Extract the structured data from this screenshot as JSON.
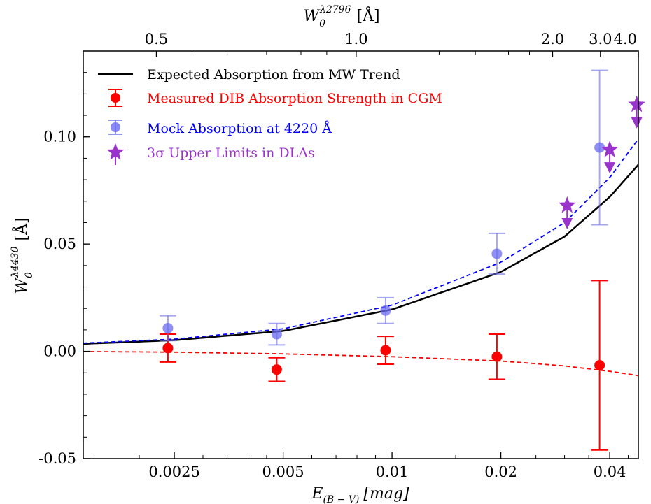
{
  "chart_data": {
    "type": "scatter",
    "x_scale": "log",
    "xlim": [
      0.0014,
      0.048
    ],
    "ylim": [
      -0.05,
      0.14
    ],
    "grid": false,
    "legend_position": "top-left",
    "xlabel": {
      "main": "E",
      "sub": "(B − V)",
      "unit": "[mag]"
    },
    "ylabel": {
      "main": "W",
      "sub": "0",
      "sup": "λ4430",
      "unit": "[Å]"
    },
    "top_xlabel": {
      "main": "W",
      "sub": "0",
      "sup": "λ2796",
      "unit": "[Å]"
    },
    "x_ticks": [
      {
        "value": 0.0025,
        "label": "0.0025"
      },
      {
        "value": 0.005,
        "label": "0.005"
      },
      {
        "value": 0.01,
        "label": "0.01"
      },
      {
        "value": 0.02,
        "label": "0.02"
      },
      {
        "value": 0.04,
        "label": "0.04"
      }
    ],
    "y_ticks": [
      {
        "value": -0.05,
        "label": "-0.05"
      },
      {
        "value": 0.0,
        "label": "0.00"
      },
      {
        "value": 0.05,
        "label": "0.05"
      },
      {
        "value": 0.1,
        "label": "0.10"
      }
    ],
    "top_ticks": [
      {
        "value": 0.5,
        "label": "0.5",
        "at_ebv": 0.00223
      },
      {
        "value": 1.0,
        "label": "1.0",
        "at_ebv": 0.00796
      },
      {
        "value": 2.0,
        "label": "2.0",
        "at_ebv": 0.0278
      },
      {
        "value": 3.0,
        "label": "3.0",
        "at_ebv": 0.0377
      },
      {
        "value": 4.0,
        "label": "4.0",
        "at_ebv": 0.048
      }
    ],
    "legend": [
      {
        "key": "mw",
        "label": "Expected Absorption from MW Trend",
        "color": "#000000",
        "marker": "line"
      },
      {
        "key": "cgm",
        "label": "Measured DIB Absorption Strength in CGM",
        "color": "#ff0000",
        "marker": "circle-errorbar"
      },
      {
        "key": "mock",
        "label": "Mock Absorption at 4220 Å",
        "color": "#0000ff",
        "marker": "circle-errorbar-light"
      },
      {
        "key": "dla",
        "label": "3σ Upper Limits in DLAs",
        "color": "#9933cc",
        "marker": "star-arrow"
      }
    ],
    "series": [
      {
        "key": "cgm",
        "color": "#ff0000",
        "points": [
          {
            "x": 0.0024,
            "y": 0.0015,
            "err": 0.0065
          },
          {
            "x": 0.0048,
            "y": -0.0085,
            "err": 0.0055
          },
          {
            "x": 0.0096,
            "y": 0.0005,
            "err": 0.0065
          },
          {
            "x": 0.0195,
            "y": -0.0025,
            "err": 0.0105
          },
          {
            "x": 0.0375,
            "y": -0.0065,
            "err": 0.0395
          }
        ]
      },
      {
        "key": "mock",
        "color": "#6b6bf0",
        "points": [
          {
            "x": 0.0024,
            "y": 0.0108,
            "err": 0.0058
          },
          {
            "x": 0.0048,
            "y": 0.008,
            "err": 0.005
          },
          {
            "x": 0.0096,
            "y": 0.019,
            "err": 0.006
          },
          {
            "x": 0.0195,
            "y": 0.0455,
            "err": 0.0095
          },
          {
            "x": 0.0375,
            "y": 0.095,
            "err": 0.036
          }
        ]
      },
      {
        "key": "dla",
        "color": "#9933cc",
        "points": [
          {
            "x": 0.0305,
            "y": 0.068
          },
          {
            "x": 0.04,
            "y": 0.094
          },
          {
            "x": 0.0475,
            "y": 0.115
          }
        ]
      }
    ],
    "trend_lines": [
      {
        "key": "mw",
        "style": "solid",
        "color": "#000000",
        "x": [
          0.0014,
          0.0025,
          0.005,
          0.01,
          0.02,
          0.03,
          0.04,
          0.048
        ],
        "y": [
          0.0035,
          0.0052,
          0.0095,
          0.0195,
          0.037,
          0.0535,
          0.072,
          0.087
        ]
      },
      {
        "key": "mock-fit",
        "style": "dashed",
        "color": "#0000ff",
        "x": [
          0.0014,
          0.0025,
          0.005,
          0.01,
          0.02,
          0.03,
          0.04,
          0.048
        ],
        "y": [
          0.0038,
          0.0057,
          0.0105,
          0.0215,
          0.0415,
          0.06,
          0.081,
          0.099
        ]
      },
      {
        "key": "cgm-fit",
        "style": "dashed",
        "color": "#ff0000",
        "x": [
          0.0014,
          0.0025,
          0.005,
          0.01,
          0.02,
          0.03,
          0.04,
          0.048
        ],
        "y": [
          -0.0001,
          -0.0004,
          -0.0012,
          -0.0025,
          -0.0045,
          -0.0068,
          -0.0093,
          -0.0113
        ]
      }
    ]
  }
}
